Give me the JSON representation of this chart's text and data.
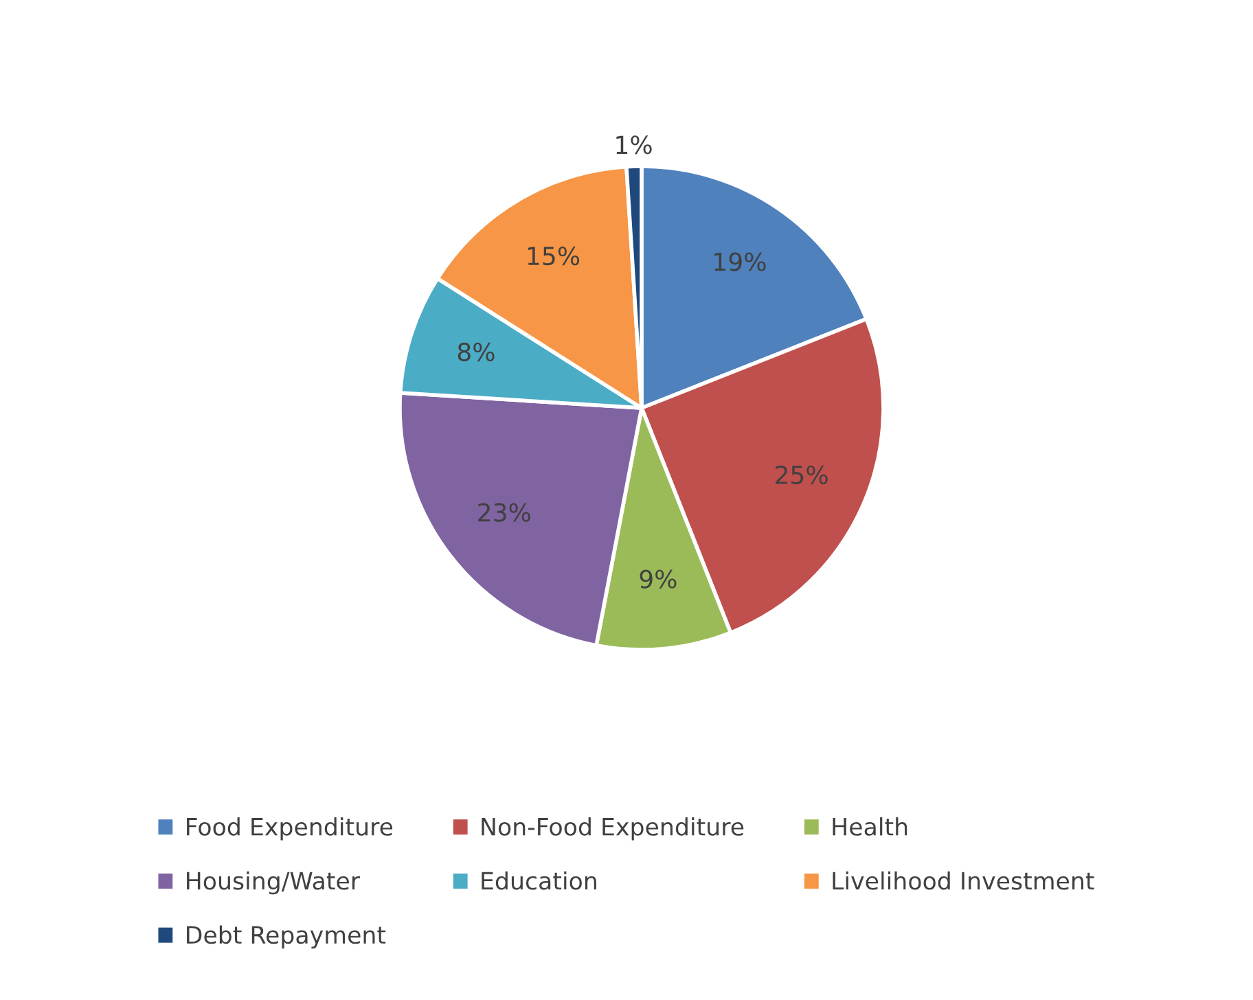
{
  "chart_data": {
    "type": "pie",
    "categories": [
      "Food Expenditure",
      "Non-Food Expenditure",
      "Health",
      "Housing/Water",
      "Education",
      "Livelihood Investment",
      "Debt Repayment"
    ],
    "values": [
      19,
      25,
      9,
      23,
      8,
      15,
      1
    ],
    "value_labels": [
      "19%",
      "25%",
      "9%",
      "23%",
      "8%",
      "15%",
      "1%"
    ],
    "colors": [
      "#4f81bd",
      "#c0504d",
      "#9bbb59",
      "#8064a2",
      "#4bacc6",
      "#f79646",
      "#1f497d"
    ],
    "legend": "bottom"
  }
}
